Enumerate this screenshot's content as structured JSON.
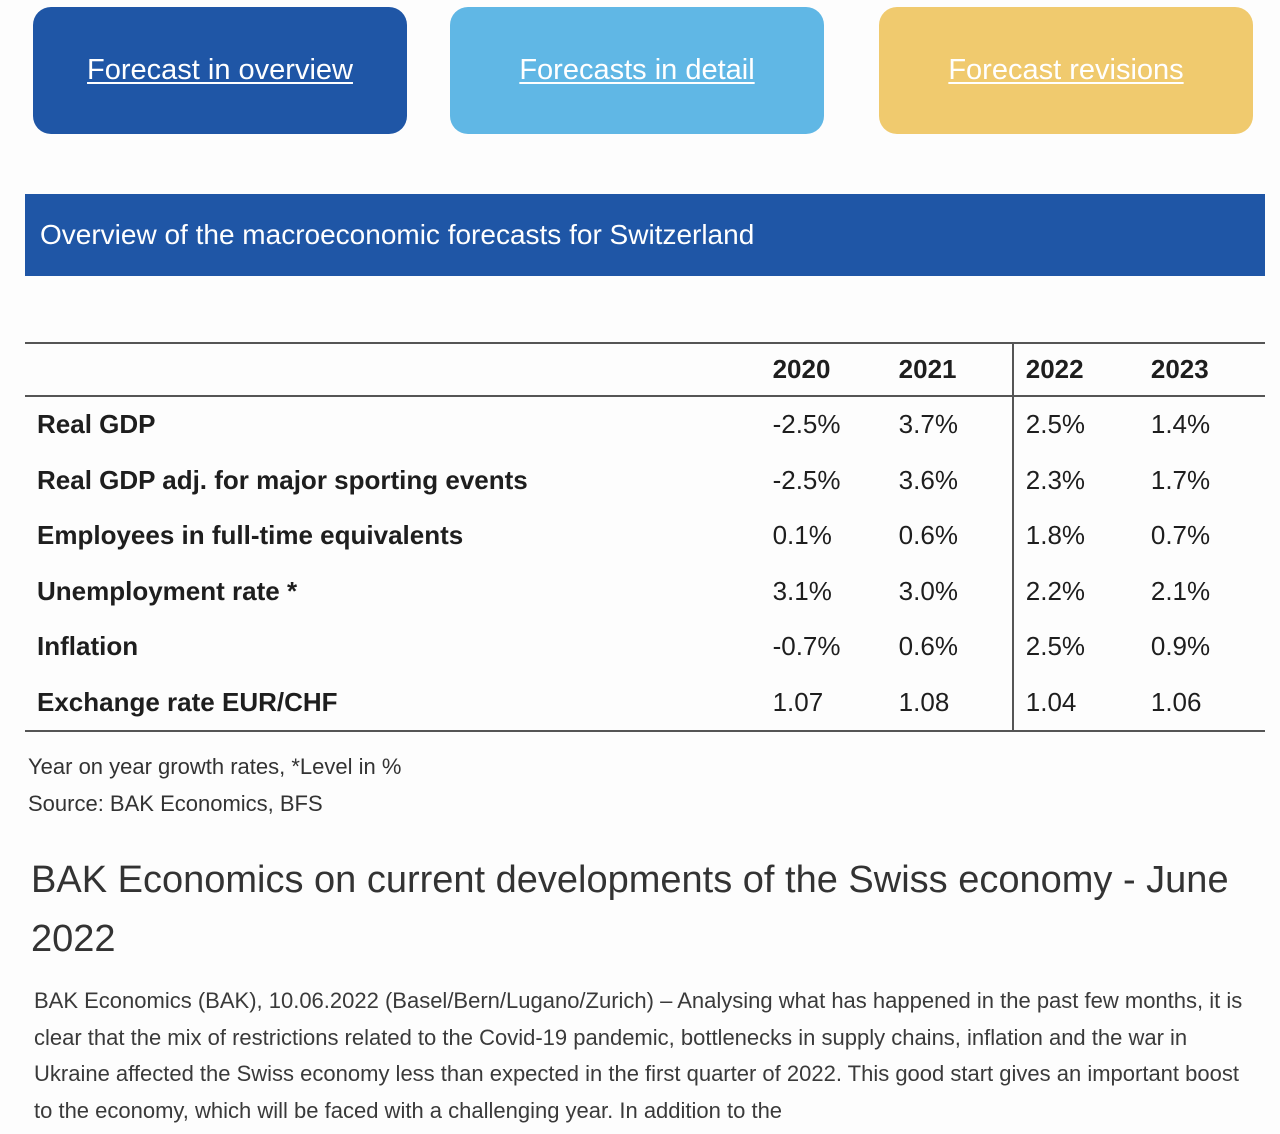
{
  "nav": {
    "overview_label": "Forecast in overview",
    "detail_label": "Forecasts in detail",
    "revisions_label": "Forecast revisions"
  },
  "section_header": "Overview of the macroeconomic forecasts for Switzerland",
  "table": {
    "years": [
      "2020",
      "2021",
      "2022",
      "2023"
    ],
    "rows": [
      {
        "label": "Real GDP",
        "values": [
          "-2.5%",
          "3.7%",
          "2.5%",
          "1.4%"
        ]
      },
      {
        "label": "Real GDP adj. for major sporting events",
        "values": [
          "-2.5%",
          "3.6%",
          "2.3%",
          "1.7%"
        ]
      },
      {
        "label": "Employees in full-time equivalents",
        "values": [
          "0.1%",
          "0.6%",
          "1.8%",
          "0.7%"
        ]
      },
      {
        "label": "Unemployment rate *",
        "values": [
          "3.1%",
          "3.0%",
          "2.2%",
          "2.1%"
        ]
      },
      {
        "label": "Inflation",
        "values": [
          "-0.7%",
          "0.6%",
          "2.5%",
          "0.9%"
        ]
      },
      {
        "label": "Exchange rate EUR/CHF",
        "values": [
          "1.07",
          "1.08",
          "1.04",
          "1.06"
        ]
      }
    ]
  },
  "notes": {
    "growth_note": "Year on year growth rates, *Level in %",
    "source": "Source: BAK Economics, BFS"
  },
  "article": {
    "title": "BAK Economics on current developments of the Swiss economy - June 2022",
    "body": "BAK Economics (BAK), 10.06.2022 (Basel/Bern/Lugano/Zurich) – Analysing what has happened in the past few months, it is clear that the mix of restrictions related to the Covid-19 pandemic, bottlenecks in supply chains, inflation and the war in Ukraine affected the Swiss economy less than expected in the first quarter of 2022. This good start gives an important boost to the economy, which will be faced with a challenging year. In addition to the"
  },
  "colors": {
    "overview": "#1f56a6",
    "detail": "#60b7e5",
    "revisions": "#f0ca6e",
    "header": "#1f56a6"
  }
}
